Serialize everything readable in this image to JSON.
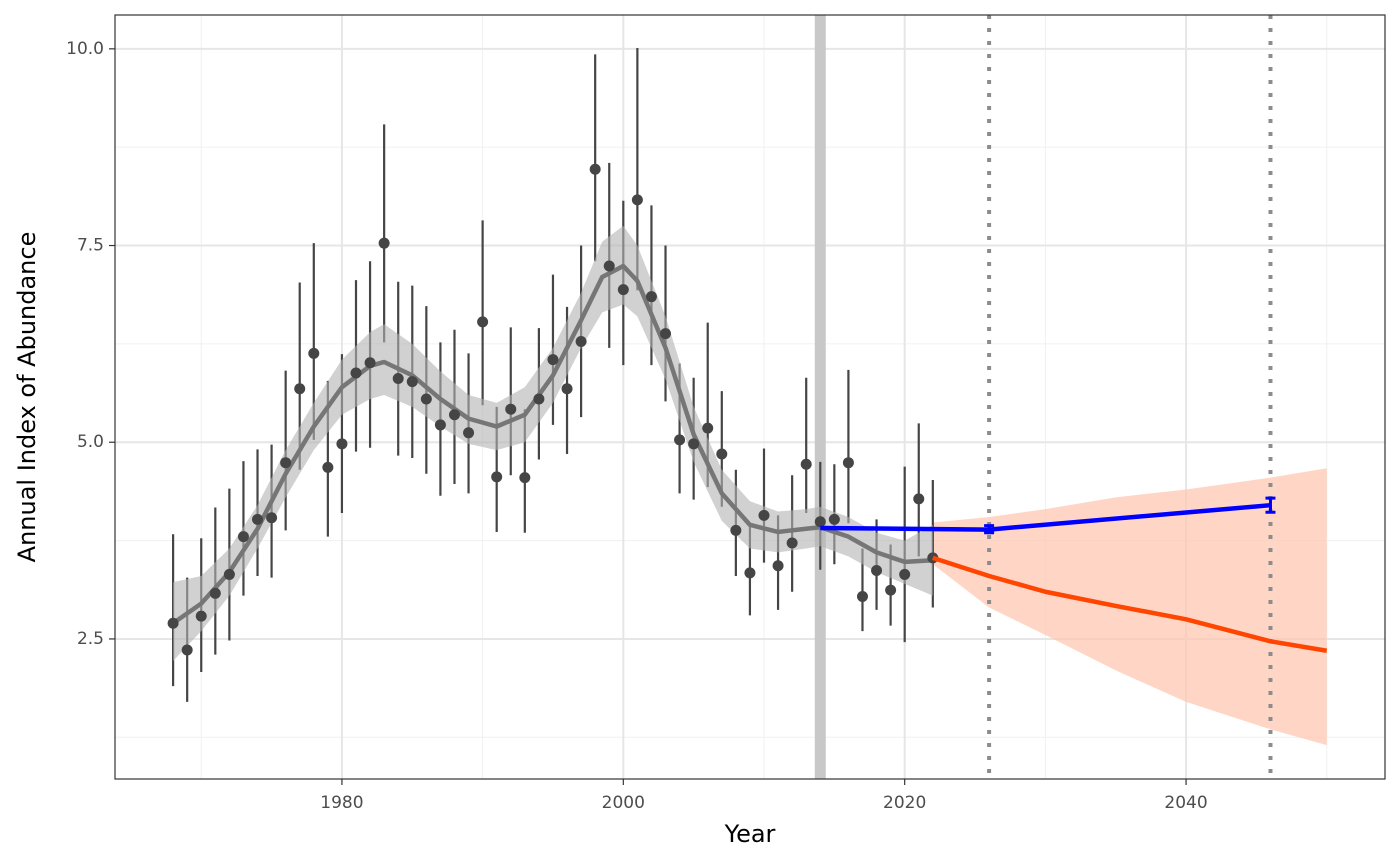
{
  "chart_data": {
    "type": "line",
    "x_label": "Year",
    "y_label": "Annual Index of Abundance",
    "xlim": [
      1963.87,
      2054.14
    ],
    "ylim": [
      0.72,
      10.43
    ],
    "xticks": [
      1980,
      2000,
      2020,
      2040
    ],
    "yticks": [
      {
        "value": 2.5,
        "label": "2.5"
      },
      {
        "value": 5,
        "label": "5.0"
      },
      {
        "value": 7.5,
        "label": "7.5"
      },
      {
        "value": 10,
        "label": "10.0"
      }
    ],
    "x_minor_grid": [
      1970,
      1990,
      2010,
      2030,
      2050
    ],
    "y_minor_grid": [
      1.25,
      3.75,
      6.25,
      8.75
    ],
    "grid": true,
    "reference_band": {
      "x": 2014,
      "color": "#c8c8c8"
    },
    "reference_lines": {
      "x": [
        2026,
        2046
      ],
      "color": "#8c8c8c"
    },
    "observations": {
      "color": "#454545",
      "x": [
        1968,
        1969,
        1970,
        1971,
        1972,
        1973,
        1974,
        1975,
        1976,
        1977,
        1978,
        1979,
        1980,
        1981,
        1982,
        1983,
        1984,
        1985,
        1986,
        1987,
        1988,
        1989,
        1990,
        1991,
        1992,
        1993,
        1994,
        1995,
        1996,
        1997,
        1998,
        1999,
        2000,
        2001,
        2002,
        2003,
        2004,
        2005,
        2006,
        2007,
        2008,
        2009,
        2010,
        2011,
        2012,
        2013,
        2014,
        2015,
        2016,
        2017,
        2018,
        2019,
        2020,
        2021,
        2022
      ],
      "values": [
        2.7,
        2.36,
        2.79,
        3.08,
        3.32,
        3.8,
        4.02,
        4.04,
        4.74,
        5.68,
        6.13,
        4.68,
        4.98,
        5.88,
        6.01,
        7.53,
        5.81,
        5.77,
        5.55,
        5.22,
        5.35,
        5.12,
        6.53,
        4.56,
        5.42,
        4.55,
        5.55,
        6.05,
        5.68,
        6.28,
        8.47,
        7.24,
        6.94,
        8.08,
        6.85,
        6.38,
        5.03,
        4.98,
        5.18,
        4.85,
        3.88,
        3.34,
        4.07,
        3.43,
        3.72,
        4.72,
        3.99,
        4.02,
        4.74,
        3.04,
        3.37,
        3.12,
        3.32,
        4.28,
        3.53
      ],
      "lower": [
        1.9,
        1.7,
        2.08,
        2.3,
        2.48,
        3.05,
        3.3,
        3.28,
        3.88,
        4.65,
        5.03,
        3.8,
        4.1,
        4.88,
        4.93,
        6.27,
        4.83,
        4.8,
        4.6,
        4.32,
        4.47,
        4.35,
        5.47,
        3.86,
        4.58,
        3.85,
        4.78,
        5.22,
        4.85,
        5.32,
        7.3,
        6.2,
        5.98,
        6.93,
        5.98,
        5.52,
        4.35,
        4.27,
        4.43,
        4.18,
        3.3,
        2.8,
        3.47,
        2.87,
        3.1,
        4.1,
        3.38,
        3.45,
        3.97,
        2.6,
        2.87,
        2.67,
        2.46,
        3.55,
        2.9
      ],
      "upper": [
        3.83,
        3.28,
        3.78,
        4.17,
        4.41,
        4.76,
        4.91,
        4.97,
        5.91,
        7.03,
        7.53,
        5.78,
        6.12,
        7.06,
        7.3,
        9.04,
        7.04,
        6.99,
        6.73,
        6.27,
        6.43,
        6.13,
        7.82,
        5.45,
        6.46,
        5.42,
        6.45,
        7.13,
        6.72,
        7.5,
        9.93,
        8.55,
        8.07,
        10.01,
        8.01,
        7.5,
        6.0,
        5.82,
        6.52,
        5.65,
        4.65,
        3.95,
        4.92,
        4.07,
        4.58,
        5.82,
        4.75,
        4.72,
        5.92,
        3.65,
        4.02,
        3.7,
        4.69,
        5.24,
        4.52
      ]
    },
    "smooth": {
      "color": "#767676",
      "band_color": "#b3b3b3",
      "x": [
        1968,
        1970,
        1972,
        1974,
        1976,
        1978,
        1980,
        1982,
        1983,
        1985,
        1987,
        1989,
        1991,
        1993,
        1995,
        1997,
        1998.5,
        2000,
        2001,
        2003,
        2005,
        2007,
        2009,
        2011,
        2013,
        2014,
        2016,
        2018,
        2020,
        2022
      ],
      "values": [
        2.7,
        2.95,
        3.35,
        3.9,
        4.6,
        5.2,
        5.7,
        5.97,
        6.02,
        5.85,
        5.55,
        5.3,
        5.2,
        5.35,
        5.85,
        6.55,
        7.1,
        7.24,
        7.05,
        6.2,
        5.1,
        4.35,
        3.95,
        3.86,
        3.9,
        3.92,
        3.8,
        3.6,
        3.48,
        3.5
      ],
      "lower": [
        2.22,
        2.6,
        3.05,
        3.65,
        4.3,
        4.9,
        5.35,
        5.55,
        5.6,
        5.45,
        5.2,
        4.98,
        4.9,
        5.0,
        5.5,
        6.2,
        6.65,
        6.75,
        6.6,
        5.8,
        4.75,
        4.0,
        3.65,
        3.6,
        3.65,
        3.68,
        3.55,
        3.35,
        3.2,
        3.05
      ],
      "upper": [
        3.22,
        3.3,
        3.65,
        4.2,
        4.9,
        5.5,
        6.05,
        6.4,
        6.5,
        6.25,
        5.9,
        5.6,
        5.5,
        5.7,
        6.2,
        6.9,
        7.55,
        7.75,
        7.5,
        6.6,
        5.45,
        4.65,
        4.25,
        4.12,
        4.15,
        4.18,
        4.05,
        3.85,
        3.75,
        3.95
      ]
    },
    "target": {
      "color": "#0000ff",
      "x": [
        2014,
        2026,
        2046
      ],
      "values": [
        3.91,
        3.89,
        4.2
      ],
      "error_x": [
        2026,
        2046
      ],
      "error_lower": [
        3.85,
        4.11
      ],
      "error_upper": [
        3.94,
        4.29
      ]
    },
    "projection": {
      "color": "#ff4500",
      "band_color": "#ffc4ae",
      "x": [
        2022,
        2026,
        2030,
        2035,
        2040,
        2046,
        2050
      ],
      "values": [
        3.53,
        3.3,
        3.1,
        2.92,
        2.75,
        2.47,
        2.35
      ],
      "lower": [
        3.45,
        2.9,
        2.55,
        2.1,
        1.7,
        1.35,
        1.15
      ],
      "upper": [
        3.98,
        4.05,
        4.15,
        4.3,
        4.4,
        4.55,
        4.67
      ]
    }
  }
}
